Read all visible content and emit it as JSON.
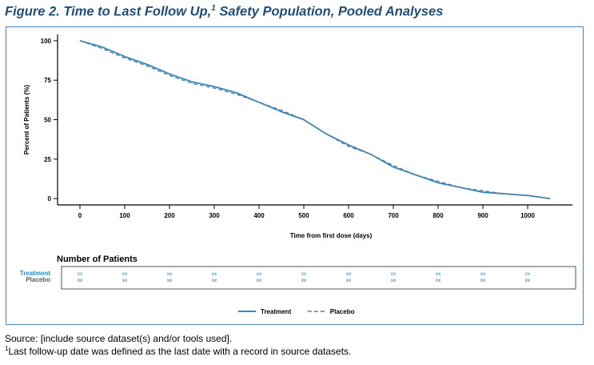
{
  "figure": {
    "title": "Figure 2. Time to Last Follow Up,",
    "title_footnote_mark": "1",
    "title_suffix": " Safety Population, Pooled Analyses"
  },
  "footer": {
    "source": "Source: [include source dataset(s) and/or tools used].",
    "footnote_mark": "1",
    "footnote": "Last follow-up date was defined as the last date with a record in source datasets."
  },
  "chart_data": {
    "type": "line",
    "title": "",
    "xlabel": "Time from first dose (days)",
    "ylabel": "Percent of Patients (%)",
    "xlim": [
      -50,
      1100
    ],
    "ylim": [
      -4,
      104
    ],
    "x_ticks": [
      0,
      100,
      200,
      300,
      400,
      500,
      600,
      700,
      800,
      900,
      1000
    ],
    "y_ticks": [
      0,
      25,
      50,
      75,
      100
    ],
    "grid": false,
    "legend_position": "bottom-center",
    "series": [
      {
        "name": "Treatment",
        "color": "#2e8bc0",
        "dash": "solid",
        "x": [
          0,
          50,
          100,
          150,
          200,
          250,
          300,
          350,
          400,
          450,
          500,
          550,
          600,
          650,
          700,
          750,
          800,
          850,
          900,
          950,
          1000,
          1050
        ],
        "y": [
          100,
          96,
          90,
          85,
          79,
          74,
          71,
          67,
          61,
          55,
          50,
          41,
          34,
          28,
          20,
          15,
          10,
          7,
          4,
          3,
          2,
          0
        ]
      },
      {
        "name": "Placebo",
        "color": "#6b7b8a",
        "dash": "dashed",
        "x": [
          0,
          50,
          100,
          150,
          200,
          250,
          300,
          350,
          400,
          450,
          500,
          550,
          600,
          650,
          700,
          750,
          800,
          850,
          900,
          950,
          1000,
          1050
        ],
        "y": [
          100,
          95,
          89,
          84,
          78,
          73,
          70,
          66,
          61,
          56,
          50,
          41,
          33,
          28,
          21,
          15,
          11,
          7,
          5,
          3,
          2,
          0
        ]
      }
    ],
    "risk_table": {
      "title": "Number of Patients",
      "rows": [
        {
          "label": "Treatment",
          "color": "#1a8fd6",
          "values": [
            "xx",
            "xx",
            "xx",
            "xx",
            "xx",
            "xx",
            "xx",
            "xx",
            "xx",
            "xx",
            "xx"
          ]
        },
        {
          "label": "Placebo",
          "color": "#5a5a5a",
          "values": [
            "xx",
            "xx",
            "xx",
            "xx",
            "xx",
            "xx",
            "xx",
            "xx",
            "xx",
            "xx",
            "xx"
          ]
        }
      ]
    }
  }
}
